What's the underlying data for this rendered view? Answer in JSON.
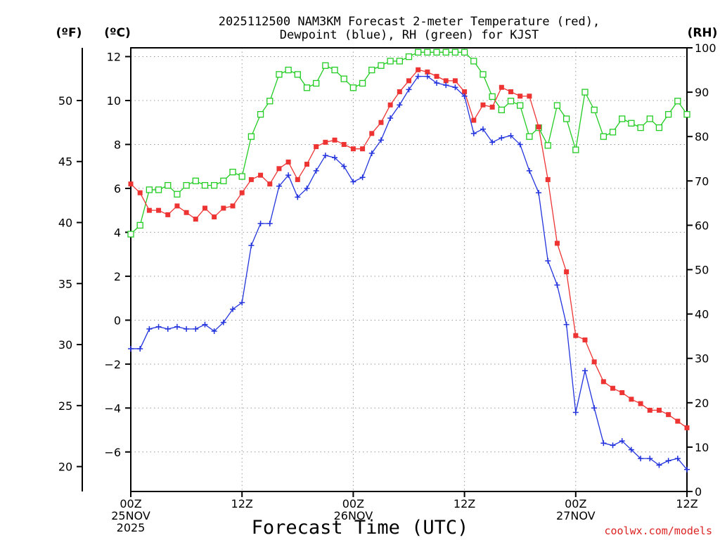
{
  "chart_data": {
    "type": "line",
    "title_line1": "2025112500 NAM3KM Forecast 2-meter Temperature (red),",
    "title_line2": "Dewpoint (blue), RH (green) for KJST",
    "unit_f": "(ºF)",
    "unit_c": "(ºC)",
    "unit_rh": "(RH)",
    "xlabel": "Forecast Time (UTC)",
    "credit": "coolwx.com/models",
    "x_range_hours": [
      0,
      60
    ],
    "y_c_range": [
      -7.8,
      12.4
    ],
    "y_rh_range": [
      0,
      100
    ],
    "f_ticks": [
      20,
      25,
      30,
      35,
      40,
      45,
      50
    ],
    "c_ticks": [
      -6,
      -4,
      -2,
      0,
      2,
      4,
      6,
      8,
      10,
      12
    ],
    "rh_ticks": [
      0,
      10,
      20,
      30,
      40,
      50,
      60,
      70,
      80,
      90,
      100
    ],
    "x_ticks": [
      {
        "hour": 0,
        "lines": [
          "00Z",
          "25NOV",
          "2025"
        ]
      },
      {
        "hour": 12,
        "lines": [
          "12Z"
        ]
      },
      {
        "hour": 24,
        "lines": [
          "00Z",
          "26NOV"
        ]
      },
      {
        "hour": 36,
        "lines": [
          "12Z"
        ]
      },
      {
        "hour": 48,
        "lines": [
          "00Z",
          "27NOV"
        ]
      },
      {
        "hour": 60,
        "lines": [
          "12Z"
        ]
      }
    ],
    "colors": {
      "temperature": "#ee3333",
      "dewpoint": "#2233dd",
      "rh": "#22cc22",
      "grid": "#999999",
      "credit": "#dd2222"
    },
    "series": [
      {
        "name": "Temperature",
        "unit": "C",
        "values": [
          6.2,
          5.8,
          5.0,
          5.0,
          4.8,
          5.2,
          4.9,
          4.6,
          5.1,
          4.7,
          5.1,
          5.2,
          5.8,
          6.4,
          6.6,
          6.2,
          6.9,
          7.2,
          6.4,
          7.1,
          7.9,
          8.1,
          8.2,
          8.0,
          7.8,
          7.8,
          8.5,
          9.0,
          9.8,
          10.4,
          10.9,
          11.4,
          11.3,
          11.1,
          10.9,
          10.9,
          10.4,
          9.1,
          9.8,
          9.7,
          10.6,
          10.4,
          10.2,
          10.2,
          8.8,
          6.4,
          3.5,
          2.2,
          -0.7,
          -0.9,
          -1.9,
          -2.8,
          -3.1,
          -3.3,
          -3.6,
          -3.8,
          -4.1,
          -4.1,
          -4.3,
          -4.6,
          -4.9
        ]
      },
      {
        "name": "Dewpoint",
        "unit": "C",
        "values": [
          -1.3,
          -1.3,
          -0.4,
          -0.3,
          -0.4,
          -0.3,
          -0.4,
          -0.4,
          -0.2,
          -0.5,
          -0.1,
          0.5,
          0.8,
          3.4,
          4.4,
          4.4,
          6.1,
          6.6,
          5.6,
          6.0,
          6.8,
          7.5,
          7.4,
          7.0,
          6.3,
          6.5,
          7.6,
          8.2,
          9.2,
          9.8,
          10.5,
          11.1,
          11.1,
          10.8,
          10.7,
          10.6,
          10.2,
          8.5,
          8.7,
          8.1,
          8.3,
          8.4,
          8.0,
          6.8,
          5.8,
          2.7,
          1.6,
          -0.2,
          -4.2,
          -2.3,
          -4.0,
          -5.6,
          -5.7,
          -5.5,
          -5.9,
          -6.3,
          -6.3,
          -6.6,
          -6.4,
          -6.3,
          -6.8
        ]
      },
      {
        "name": "RH",
        "unit": "%",
        "values": [
          58,
          60,
          68,
          68,
          69,
          67,
          69,
          70,
          69,
          69,
          70,
          72,
          71,
          80,
          85,
          88,
          94,
          95,
          94,
          91,
          92,
          96,
          95,
          93,
          91,
          92,
          95,
          96,
          97,
          97,
          98,
          99,
          99,
          99,
          99,
          99,
          99,
          97,
          94,
          89,
          86,
          88,
          87,
          80,
          82,
          78,
          87,
          84,
          77,
          90,
          86,
          80,
          81,
          84,
          83,
          82,
          84,
          82,
          85,
          88,
          85
        ]
      }
    ]
  }
}
